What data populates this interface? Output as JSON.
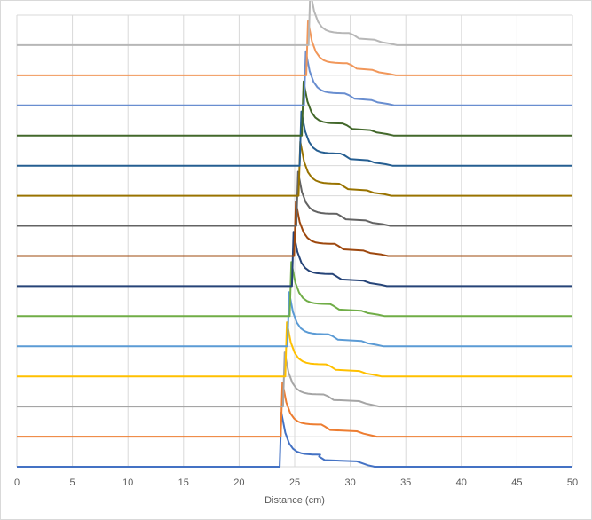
{
  "chart_data": {
    "type": "line",
    "title": "",
    "xlabel": "Distance (cm)",
    "ylabel": "",
    "xlim": [
      0,
      50
    ],
    "ylim": [
      0,
      15
    ],
    "x_ticks": [
      0,
      5,
      10,
      15,
      20,
      25,
      30,
      35,
      40,
      45,
      50
    ],
    "y_gridlines": [
      0,
      1,
      2,
      3,
      4,
      5,
      6,
      7,
      8,
      9,
      10,
      11,
      12,
      13,
      14,
      15
    ],
    "y_tick_labels_shown": false,
    "grid": true,
    "legend": "none",
    "series": [
      {
        "color": "#4472C4",
        "offset": 0,
        "front_x": 23.8,
        "step_xs": [
          27.5,
          31.0
        ],
        "tail_x": 31.6
      },
      {
        "color": "#ED7D31",
        "offset": 1,
        "front_x": 23.9,
        "step_xs": [
          28.0,
          31.0
        ],
        "tail_x": 31.8
      },
      {
        "color": "#A5A5A5",
        "offset": 2,
        "front_x": 24.1,
        "step_xs": [
          28.3,
          31.2
        ],
        "tail_x": 32.0
      },
      {
        "color": "#FFC000",
        "offset": 3,
        "front_x": 24.3,
        "step_xs": [
          28.5,
          31.2
        ],
        "tail_x": 32.2
      },
      {
        "color": "#5B9BD5",
        "offset": 4,
        "front_x": 24.5,
        "step_xs": [
          28.7,
          31.4
        ],
        "tail_x": 32.4
      },
      {
        "color": "#70AD47",
        "offset": 5,
        "front_x": 24.7,
        "step_xs": [
          28.8,
          31.4
        ],
        "tail_x": 32.5
      },
      {
        "color": "#264478",
        "offset": 6,
        "front_x": 24.9,
        "step_xs": [
          29.0,
          31.6
        ],
        "tail_x": 32.7
      },
      {
        "color": "#9E480E",
        "offset": 7,
        "front_x": 25.1,
        "step_xs": [
          29.2,
          31.6
        ],
        "tail_x": 32.8
      },
      {
        "color": "#636363",
        "offset": 8,
        "front_x": 25.3,
        "step_xs": [
          29.4,
          31.8
        ],
        "tail_x": 33.0
      },
      {
        "color": "#997300",
        "offset": 9,
        "front_x": 25.5,
        "step_xs": [
          29.6,
          31.9
        ],
        "tail_x": 33.1
      },
      {
        "color": "#255E91",
        "offset": 10,
        "front_x": 25.6,
        "step_xs": [
          29.8,
          32.0
        ],
        "tail_x": 33.2
      },
      {
        "color": "#43682B",
        "offset": 11,
        "front_x": 25.8,
        "step_xs": [
          30.0,
          32.2
        ],
        "tail_x": 33.3
      },
      {
        "color": "#698ED0",
        "offset": 12,
        "front_x": 26.0,
        "step_xs": [
          30.2,
          32.3
        ],
        "tail_x": 33.4
      },
      {
        "color": "#F1975A",
        "offset": 13,
        "front_x": 26.2,
        "step_xs": [
          30.4,
          32.4
        ],
        "tail_x": 33.5
      },
      {
        "color": "#B7B7B7",
        "offset": 14,
        "front_x": 26.4,
        "step_xs": [
          30.6,
          32.6
        ],
        "tail_x": 33.6
      }
    ],
    "peak_height": 1.8,
    "baseline_after_front": 0.4
  }
}
